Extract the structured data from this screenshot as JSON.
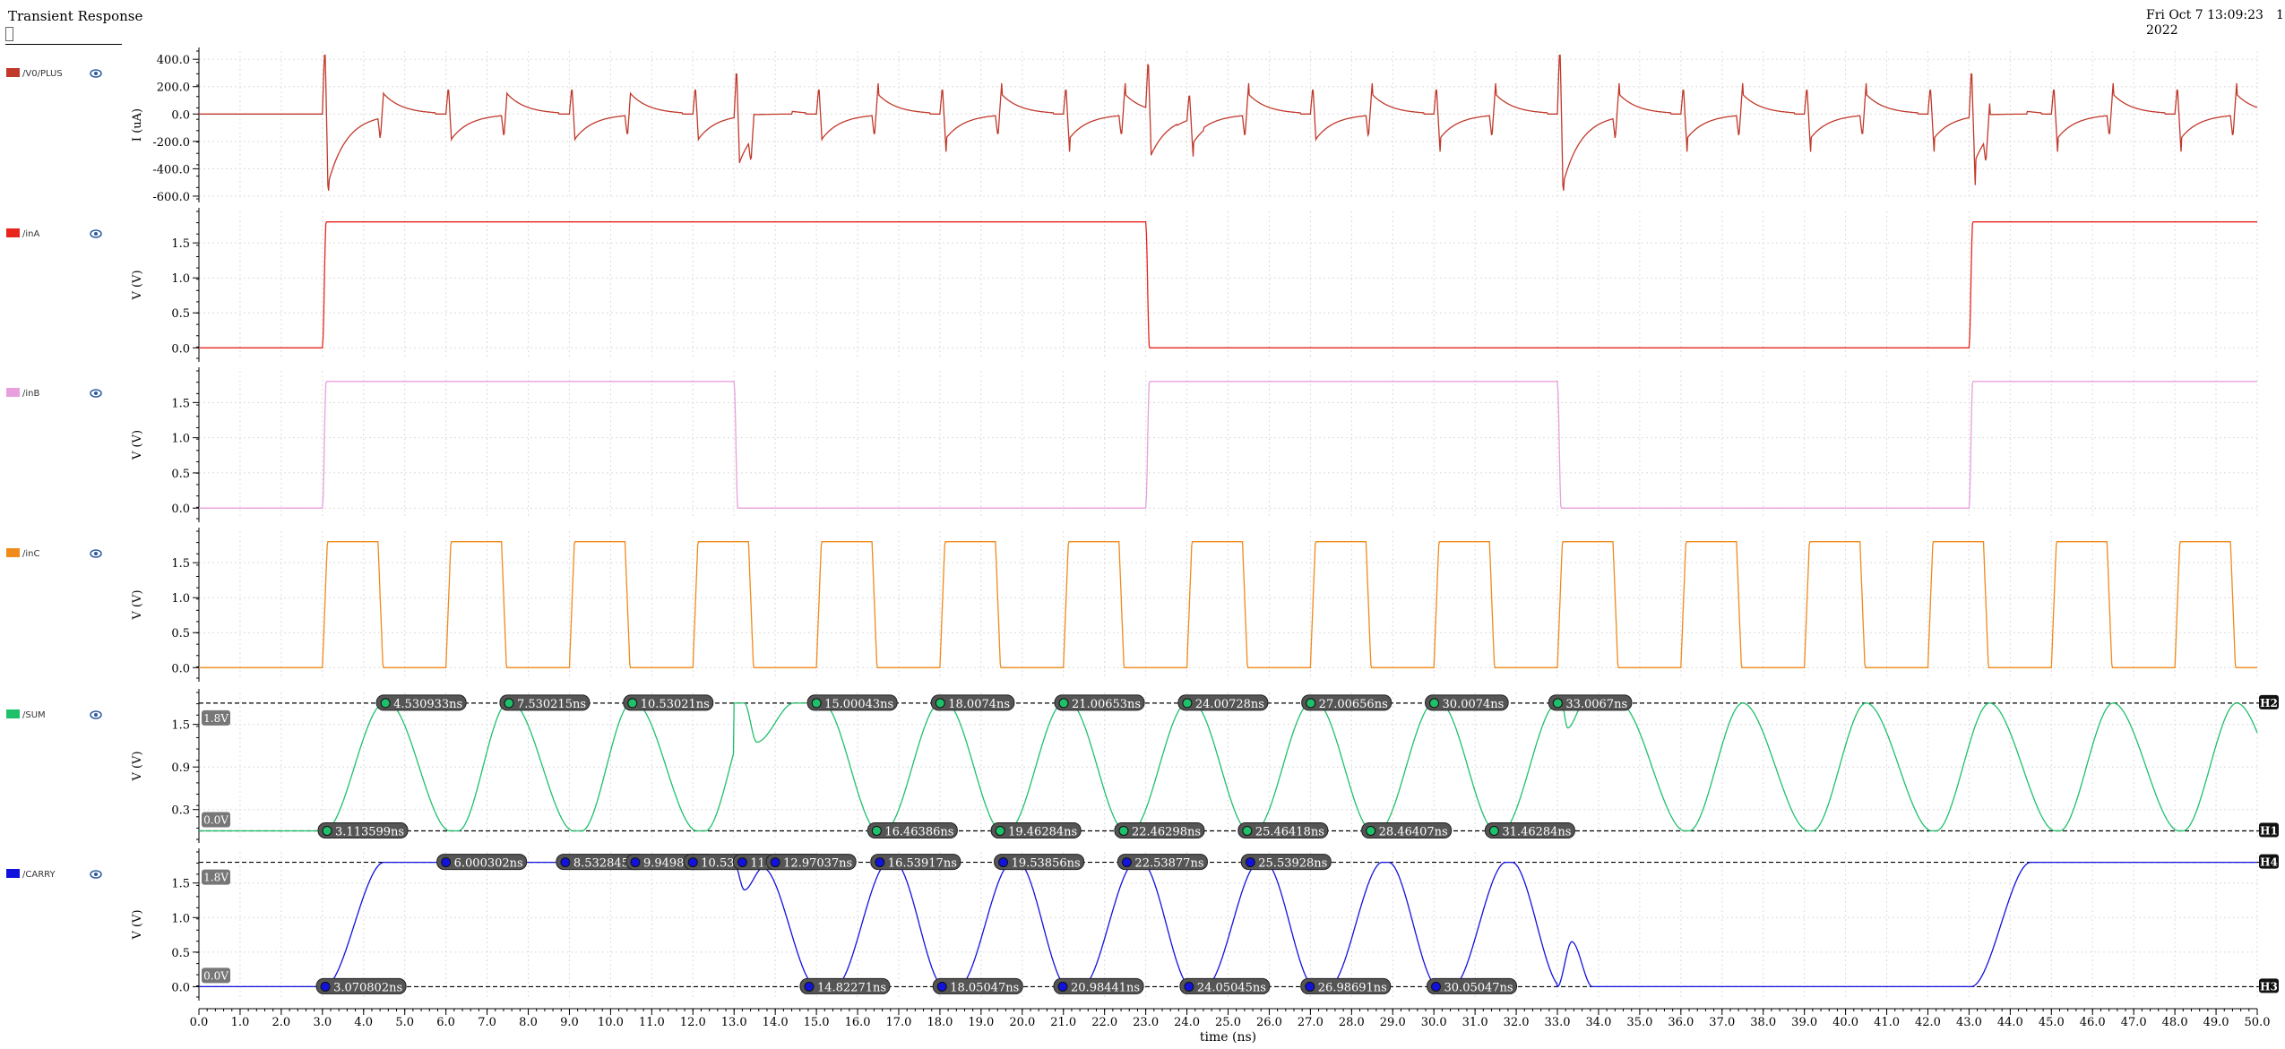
{
  "header": {
    "title": "Transient Response",
    "date_line1": "Fri Oct 7 13:09:23",
    "date_line2": "2022",
    "page_number": "1"
  },
  "chart_data": {
    "type": "line",
    "xlabel": "time (ns)",
    "xlim": [
      0,
      50
    ],
    "x_ticks": [
      "0.0",
      "1.0",
      "2.0",
      "3.0",
      "4.0",
      "5.0",
      "6.0",
      "7.0",
      "8.0",
      "9.0",
      "10.0",
      "11.0",
      "12.0",
      "13.0",
      "14.0",
      "15.0",
      "16.0",
      "17.0",
      "18.0",
      "19.0",
      "20.0",
      "21.0",
      "22.0",
      "23.0",
      "24.0",
      "25.0",
      "26.0",
      "27.0",
      "28.0",
      "29.0",
      "30.0",
      "31.0",
      "32.0",
      "33.0",
      "34.0",
      "35.0",
      "36.0",
      "37.0",
      "38.0",
      "39.0",
      "40.0",
      "41.0",
      "42.0",
      "43.0",
      "44.0",
      "45.0",
      "46.0",
      "47.0",
      "48.0",
      "49.0",
      "50.0"
    ],
    "grid": true,
    "panels": [
      {
        "name": "/V0/PLUS",
        "color": "#c0392b",
        "ylabel": "I (uA)",
        "ylim": [
          -620,
          460
        ],
        "y_ticks": [
          "400.0",
          "200.0",
          "0.0",
          "-200.0",
          "-400.0",
          "-600.0"
        ],
        "kind": "current"
      },
      {
        "name": "/inA",
        "color": "#e8251c",
        "ylabel": "V (V)",
        "ylim": [
          -0.15,
          1.95
        ],
        "y_ticks": [
          "1.5",
          "1.0",
          "0.5",
          "0.0"
        ],
        "kind": "pulse",
        "edges": [
          [
            3.0,
            1.8
          ],
          [
            23.0,
            0.0
          ],
          [
            43.0,
            1.8
          ]
        ]
      },
      {
        "name": "/inB",
        "color": "#e8a0dc",
        "ylabel": "V (V)",
        "ylim": [
          -0.15,
          1.95
        ],
        "y_ticks": [
          "1.5",
          "1.0",
          "0.5",
          "0.0"
        ],
        "kind": "pulse",
        "edges": [
          [
            3.0,
            1.8
          ],
          [
            13.0,
            0.0
          ],
          [
            23.0,
            1.8
          ],
          [
            33.0,
            0.0
          ],
          [
            43.0,
            1.8
          ]
        ]
      },
      {
        "name": "/inC",
        "color": "#f08a1a",
        "ylabel": "V (V)",
        "ylim": [
          -0.15,
          1.95
        ],
        "y_ticks": [
          "1.5",
          "1.0",
          "0.5",
          "0.0"
        ],
        "kind": "clock",
        "period": 3.0,
        "first_edge": 3.0,
        "high_time": 1.35
      },
      {
        "name": "/SUM",
        "color": "#1fc06a",
        "ylabel": "V (V)",
        "ylim": [
          -0.12,
          1.95
        ],
        "y_ticks": [
          "1.5",
          "0.9",
          "0.3"
        ],
        "kind": "sum",
        "hline_high": 1.8,
        "hline_low": 0.0,
        "level_high_label": "1.8V",
        "level_low_label": "0.0V",
        "hline_tags": [
          "H2",
          "H1"
        ],
        "marks_high": [
          {
            "x": 4.530933,
            "label": "4.530933ns"
          },
          {
            "x": 7.530215,
            "label": "7.530215ns"
          },
          {
            "x": 10.53021,
            "label": "10.53021ns"
          },
          {
            "x": 15.00043,
            "label": "15.00043ns"
          },
          {
            "x": 18.0074,
            "label": "18.0074ns"
          },
          {
            "x": 21.00653,
            "label": "21.00653ns"
          },
          {
            "x": 24.00728,
            "label": "24.00728ns"
          },
          {
            "x": 27.00656,
            "label": "27.00656ns"
          },
          {
            "x": 30.0074,
            "label": "30.0074ns"
          },
          {
            "x": 33.0067,
            "label": "33.0067ns"
          }
        ],
        "marks_low": [
          {
            "x": 3.113599,
            "label": "3.113599ns"
          },
          {
            "x": 16.46386,
            "label": "16.46386ns"
          },
          {
            "x": 19.46284,
            "label": "19.46284ns"
          },
          {
            "x": 22.46298,
            "label": "22.46298ns"
          },
          {
            "x": 25.46418,
            "label": "25.46418ns"
          },
          {
            "x": 28.46407,
            "label": "28.46407ns"
          },
          {
            "x": 31.46284,
            "label": "31.46284ns"
          }
        ]
      },
      {
        "name": "/CARRY",
        "color": "#1212dd",
        "ylabel": "V (V)",
        "ylim": [
          -0.15,
          1.95
        ],
        "y_ticks": [
          "1.5",
          "1.0",
          "0.5",
          "0.0"
        ],
        "kind": "carry",
        "hline_high": 1.8,
        "hline_low": 0.0,
        "level_high_label": "1.8V",
        "level_low_label": "0.0V",
        "hline_tags": [
          "H4",
          "H3"
        ],
        "marks_high": [
          {
            "x": 6.0,
            "label": "6.000302ns"
          },
          {
            "x": 8.9,
            "label": "8.532845ns"
          },
          {
            "x": 10.6,
            "label": "9.949848ns"
          },
          {
            "x": 12.0,
            "label": "10.53286ns"
          },
          {
            "x": 13.2,
            "label": "11.94923ns"
          },
          {
            "x": 14.0,
            "label": "12.97037ns"
          },
          {
            "x": 16.53917,
            "label": "16.53917ns"
          },
          {
            "x": 19.53856,
            "label": "19.53856ns"
          },
          {
            "x": 22.53877,
            "label": "22.53877ns"
          },
          {
            "x": 25.53928,
            "label": "25.53928ns"
          }
        ],
        "marks_low": [
          {
            "x": 3.070802,
            "label": "3.070802ns"
          },
          {
            "x": 14.82271,
            "label": "14.82271ns"
          },
          {
            "x": 18.05047,
            "label": "18.05047ns"
          },
          {
            "x": 20.98441,
            "label": "20.98441ns"
          },
          {
            "x": 24.05045,
            "label": "24.05045ns"
          },
          {
            "x": 26.98691,
            "label": "26.98691ns"
          },
          {
            "x": 30.05047,
            "label": "30.05047ns"
          }
        ]
      }
    ]
  }
}
